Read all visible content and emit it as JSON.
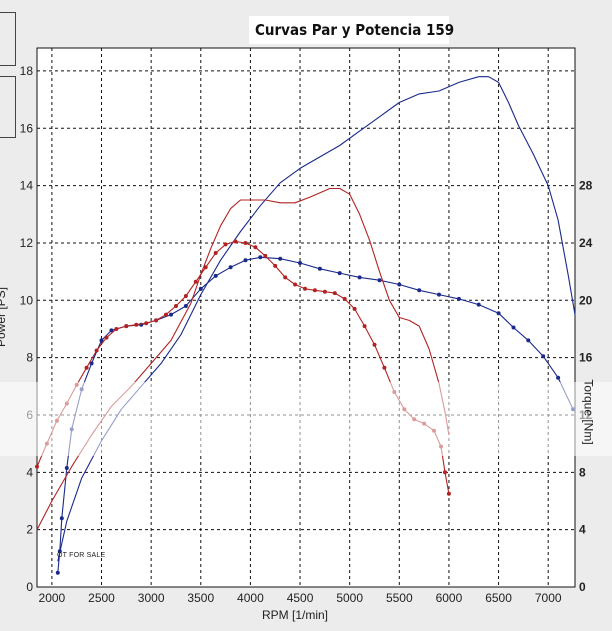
{
  "chart_data": {
    "type": "line",
    "title": "Curvas Par  y Potencia 159",
    "xlabel": "RPM [1/min]",
    "ylabel_left": "Power [PS]",
    "ylabel_right": "Torque [Nm]",
    "xlim": [
      1850,
      7270
    ],
    "ylim_left": [
      0,
      18.8
    ],
    "ylim_right": [
      0,
      37.6
    ],
    "x_ticks": [
      2000,
      2500,
      3000,
      3500,
      4000,
      4500,
      5000,
      5500,
      6000,
      6500,
      7000
    ],
    "y_ticks_left": [
      0,
      2,
      4,
      6,
      8,
      10,
      12,
      14,
      16,
      18
    ],
    "y_ticks_right": [
      0,
      4,
      8,
      12,
      16,
      20,
      24,
      28
    ],
    "grid": true,
    "series": [
      {
        "axis": "left",
        "color": "#1a2a8a",
        "markers": false,
        "x": [
          2060,
          2150,
          2300,
          2500,
          2700,
          2900,
          3100,
          3300,
          3500,
          3700,
          3900,
          4100,
          4300,
          4500,
          4700,
          4900,
          5100,
          5300,
          5500,
          5700,
          5900,
          6100,
          6300,
          6400,
          6500,
          6600,
          6700,
          6850,
          7000,
          7100,
          7200,
          7270
        ],
        "y": [
          0.9,
          2.3,
          3.8,
          5.1,
          6.2,
          7.0,
          7.8,
          8.8,
          10.2,
          11.4,
          12.4,
          13.3,
          14.1,
          14.6,
          15.0,
          15.4,
          15.9,
          16.4,
          16.9,
          17.2,
          17.3,
          17.6,
          17.8,
          17.8,
          17.6,
          16.9,
          16.1,
          15.1,
          14.0,
          12.8,
          10.9,
          9.5
        ]
      },
      {
        "axis": "right",
        "color": "#1a2a8a",
        "markers": true,
        "x": [
          2060,
          2080,
          2100,
          2150,
          2200,
          2300,
          2400,
          2500,
          2600,
          2750,
          2900,
          3050,
          3200,
          3350,
          3500,
          3650,
          3800,
          3950,
          4100,
          4300,
          4500,
          4700,
          4900,
          5100,
          5300,
          5500,
          5700,
          5900,
          6100,
          6300,
          6500,
          6650,
          6800,
          6950,
          7100,
          7250
        ],
        "y": [
          1.0,
          2.5,
          4.8,
          8.3,
          11.0,
          13.8,
          15.6,
          17.2,
          17.9,
          18.2,
          18.3,
          18.6,
          19.0,
          19.6,
          20.8,
          21.7,
          22.3,
          22.8,
          23.0,
          22.9,
          22.6,
          22.2,
          21.9,
          21.6,
          21.4,
          21.1,
          20.7,
          20.4,
          20.1,
          19.7,
          19.1,
          18.1,
          17.2,
          16.1,
          14.6,
          12.4
        ]
      },
      {
        "axis": "left",
        "color": "#b22222",
        "markers": false,
        "x": [
          1850,
          2000,
          2200,
          2400,
          2600,
          2800,
          3000,
          3200,
          3400,
          3500,
          3600,
          3700,
          3800,
          3900,
          4000,
          4150,
          4300,
          4450,
          4600,
          4800,
          4900,
          5000,
          5100,
          5200,
          5300,
          5400,
          5500,
          5600,
          5700,
          5800,
          5900,
          5960,
          6000
        ],
        "y": [
          2.0,
          3.0,
          4.2,
          5.3,
          6.3,
          7.0,
          7.8,
          8.6,
          9.9,
          10.9,
          11.8,
          12.6,
          13.2,
          13.5,
          13.5,
          13.5,
          13.4,
          13.4,
          13.6,
          13.9,
          13.9,
          13.7,
          13.0,
          12.1,
          11.0,
          10.0,
          9.4,
          9.3,
          9.1,
          8.3,
          7.1,
          6.1,
          5.3
        ]
      },
      {
        "axis": "right",
        "color": "#b22222",
        "markers": true,
        "x": [
          1850,
          1950,
          2050,
          2150,
          2250,
          2350,
          2450,
          2550,
          2650,
          2750,
          2850,
          2950,
          3050,
          3150,
          3250,
          3350,
          3450,
          3550,
          3650,
          3750,
          3850,
          3950,
          4050,
          4150,
          4250,
          4350,
          4450,
          4550,
          4650,
          4750,
          4850,
          4950,
          5050,
          5150,
          5250,
          5350,
          5450,
          5550,
          5650,
          5750,
          5850,
          5920,
          5960,
          6000
        ],
        "y": [
          8.4,
          10.0,
          11.6,
          12.8,
          14.1,
          15.3,
          16.5,
          17.4,
          18.0,
          18.2,
          18.3,
          18.4,
          18.6,
          19.0,
          19.6,
          20.3,
          21.3,
          22.3,
          23.3,
          23.9,
          24.1,
          24.0,
          23.7,
          23.1,
          22.4,
          21.6,
          21.1,
          20.8,
          20.7,
          20.6,
          20.5,
          20.1,
          19.4,
          18.2,
          16.9,
          15.3,
          13.6,
          12.4,
          11.7,
          11.4,
          10.9,
          9.8,
          8.0,
          6.5
        ]
      }
    ],
    "annotation": "OT FOR SALE"
  }
}
